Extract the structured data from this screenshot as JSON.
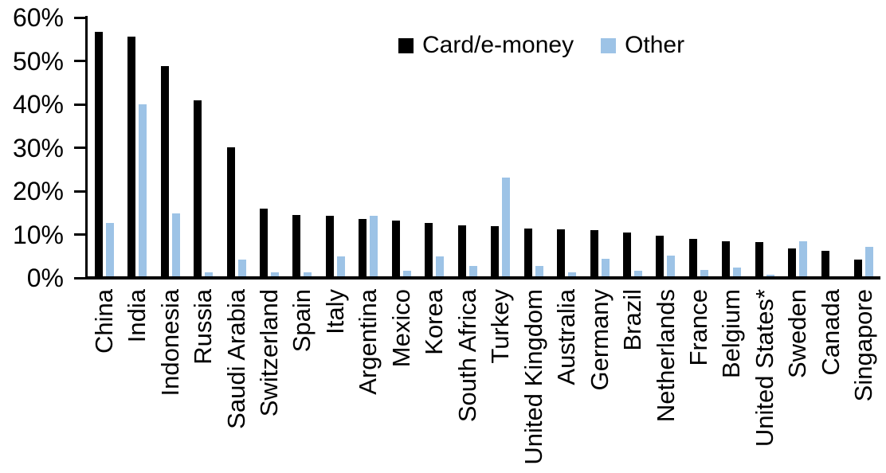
{
  "chart_data": {
    "type": "bar",
    "title": "",
    "xlabel": "",
    "ylabel": "",
    "ylim": [
      0,
      60
    ],
    "ytick_values": [
      0,
      10,
      20,
      30,
      40,
      50,
      60
    ],
    "ytick_labels": [
      "0%",
      "10%",
      "20%",
      "30%",
      "40%",
      "50%",
      "60%"
    ],
    "grid": false,
    "legend_position": "top-center",
    "categories": [
      "China",
      "India",
      "Indonesia",
      "Russia",
      "Saudi Arabia",
      "Switzerland",
      "Spain",
      "Italy",
      "Argentina",
      "Mexico",
      "Korea",
      "South Africa",
      "Turkey",
      "United Kingdom",
      "Australia",
      "Germany",
      "Brazil",
      "Netherlands",
      "France",
      "Belgium",
      "United States*",
      "Sweden",
      "Canada",
      "Singapore"
    ],
    "series": [
      {
        "name": "Card/e-money",
        "color": "#000000",
        "values": [
          56.4,
          55.2,
          48.4,
          40.5,
          29.8,
          15.6,
          14.2,
          14.0,
          13.3,
          12.9,
          12.3,
          11.8,
          11.6,
          11.1,
          10.8,
          10.7,
          10.0,
          9.3,
          8.6,
          8.1,
          7.9,
          6.5,
          5.9,
          3.9
        ]
      },
      {
        "name": "Other",
        "color": "#9DC3E6",
        "values": [
          12.3,
          39.7,
          14.5,
          1.0,
          3.9,
          0.9,
          1.0,
          4.6,
          13.9,
          1.3,
          4.5,
          2.4,
          22.8,
          2.4,
          0.9,
          4.0,
          1.2,
          4.8,
          1.5,
          2.1,
          0.4,
          8.1,
          0.0,
          6.7
        ]
      }
    ]
  }
}
